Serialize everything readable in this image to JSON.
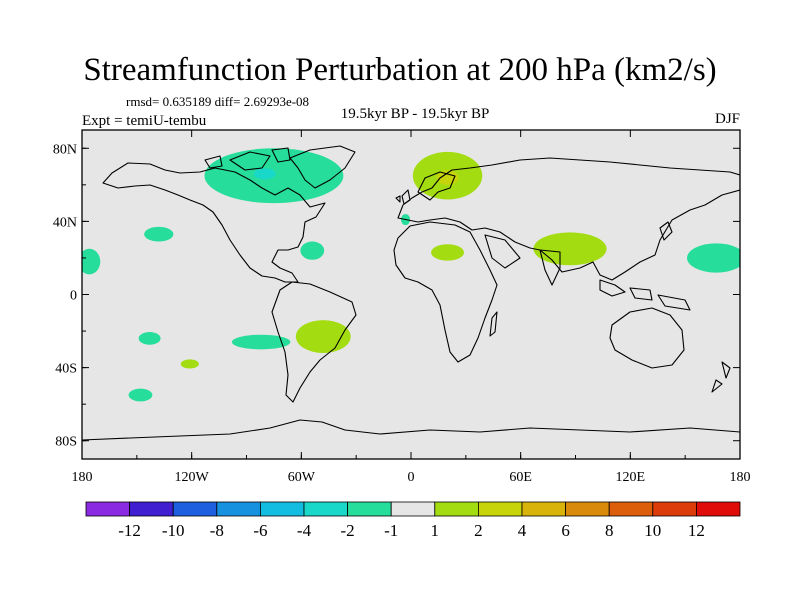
{
  "title": "Streamfunction Perturbation at 200 hPa (km2/s)",
  "stats": "rmsd= 0.635189 diff= 2.69293e-08",
  "expt": "Expt = temiU-tembu",
  "period": "19.5kyr BP - 19.5kyr BP",
  "season": "DJF",
  "y_ticks": [
    {
      "label": "80N",
      "lat": 80
    },
    {
      "label": "40N",
      "lat": 40
    },
    {
      "label": "0",
      "lat": 0
    },
    {
      "label": "40S",
      "lat": -40
    },
    {
      "label": "80S",
      "lat": -80
    }
  ],
  "x_ticks": [
    {
      "label": "180",
      "lon": -180
    },
    {
      "label": "120W",
      "lon": -120
    },
    {
      "label": "60W",
      "lon": -60
    },
    {
      "label": "0",
      "lon": 0
    },
    {
      "label": "60E",
      "lon": 60
    },
    {
      "label": "120E",
      "lon": 120
    },
    {
      "label": "180",
      "lon": 180
    }
  ],
  "colorbar": {
    "colors": [
      "#8a2be2",
      "#3f1fd0",
      "#1e5fe0",
      "#1591e0",
      "#13bde2",
      "#19d8c9",
      "#27dd9c",
      "#e6e6e6",
      "#a4dc12",
      "#c8d40a",
      "#d8b40a",
      "#da8a0a",
      "#dc5e0a",
      "#dc3c0a",
      "#e00c0a"
    ],
    "labels": [
      "-12",
      "-10",
      "-8",
      "-6",
      "-4",
      "-2",
      "-1",
      "1",
      "2",
      "4",
      "6",
      "8",
      "10",
      "12"
    ]
  },
  "background_color": "#e6e6e6",
  "anomalies": [
    {
      "name": "canada-negative",
      "color": "#27dd9c",
      "level": -1,
      "lon": -75,
      "lat": 65,
      "rlon": 38,
      "rlat": 15
    },
    {
      "name": "hudson-bay-core",
      "color": "#19d8c9",
      "level": -2,
      "lon": -80,
      "lat": 66,
      "rlon": 6,
      "rlat": 3
    },
    {
      "name": "north-pacific-neg",
      "color": "#27dd9c",
      "level": -1,
      "lon": -138,
      "lat": 33,
      "rlon": 8,
      "rlat": 4
    },
    {
      "name": "west-atlantic-neg",
      "color": "#27dd9c",
      "level": -1,
      "lon": -54,
      "lat": 24,
      "rlon": 6.5,
      "rlat": 5
    },
    {
      "name": "iberia-neg",
      "color": "#27dd9c",
      "level": -1,
      "lon": -3,
      "lat": 41,
      "rlon": 2.5,
      "rlat": 3
    },
    {
      "name": "date-line-east-neg",
      "color": "#27dd9c",
      "level": -1,
      "lon": -176,
      "lat": 18,
      "rlon": 6,
      "rlat": 7
    },
    {
      "name": "west-pacific-neg",
      "color": "#27dd9c",
      "level": -1,
      "lon": 167,
      "lat": 20,
      "rlon": 16,
      "rlat": 8
    },
    {
      "name": "south-pacific-neg",
      "color": "#27dd9c",
      "level": -1,
      "lon": -143,
      "lat": -24,
      "rlon": 6,
      "rlat": 3.5
    },
    {
      "name": "south-america-neg",
      "color": "#27dd9c",
      "level": -1,
      "lon": -82,
      "lat": -26,
      "rlon": 16,
      "rlat": 4
    },
    {
      "name": "southern-ocean-neg",
      "color": "#27dd9c",
      "level": -1,
      "lon": -148,
      "lat": -55,
      "rlon": 6.5,
      "rlat": 3.5
    },
    {
      "name": "scandinavia-positive",
      "color": "#a4dc12",
      "level": 1,
      "lon": 20,
      "lat": 65,
      "rlon": 19,
      "rlat": 13
    },
    {
      "name": "scandinavia-core",
      "color": "#c8d40a",
      "level": 2,
      "lon": 20,
      "lat": 64,
      "rlon": 6,
      "rlat": 4
    },
    {
      "name": "asia-positive",
      "color": "#a4dc12",
      "level": 1,
      "lon": 87,
      "lat": 25,
      "rlon": 20,
      "rlat": 9
    },
    {
      "name": "sahara-positive",
      "color": "#a4dc12",
      "level": 1,
      "lon": 20,
      "lat": 23,
      "rlon": 9,
      "rlat": 4.5
    },
    {
      "name": "south-atlantic-pos",
      "color": "#a4dc12",
      "level": 1,
      "lon": -48,
      "lat": -23,
      "rlon": 15,
      "rlat": 9
    },
    {
      "name": "southeast-pacific-pos",
      "color": "#a4dc12",
      "level": 1,
      "lon": -121,
      "lat": -38,
      "rlon": 5,
      "rlat": 2.5
    }
  ]
}
